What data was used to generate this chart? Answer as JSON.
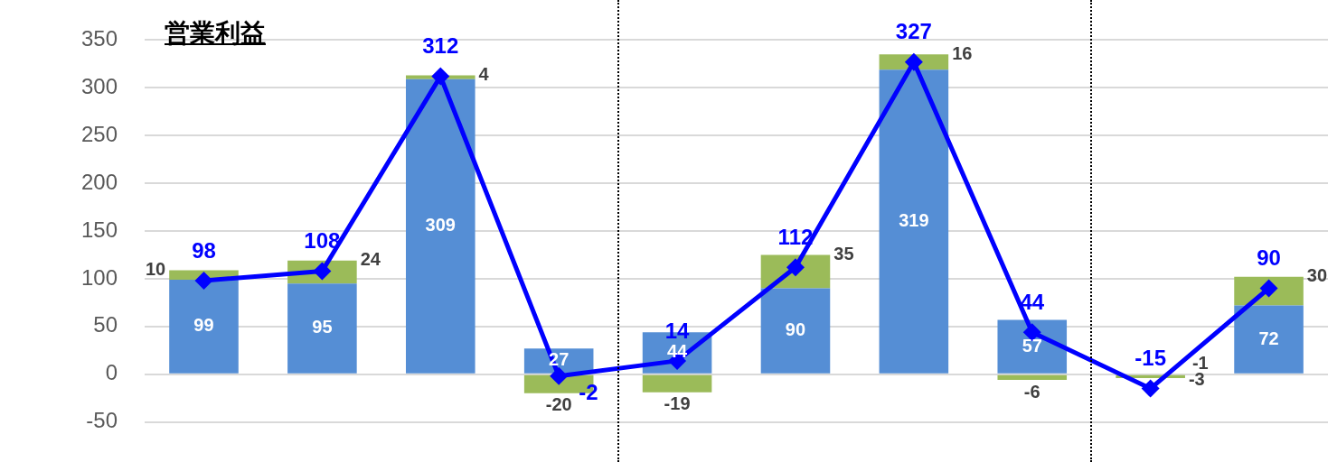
{
  "chart_data": {
    "type": "bar",
    "title": "営業利益",
    "stacked": true,
    "data_labels": true,
    "grid": "y",
    "legend": false,
    "tick_labels": "y",
    "categories": [
      null,
      null,
      null,
      null,
      null,
      null,
      null,
      null,
      null,
      null
    ],
    "ylim": [
      -50,
      350
    ],
    "yticks": [
      -50,
      0,
      50,
      100,
      150,
      200,
      250,
      300,
      350
    ],
    "series": [
      {
        "color": "#558ed5",
        "values": [
          99,
          95,
          309,
          27,
          44,
          90,
          319,
          57,
          -1,
          72
        ]
      },
      {
        "color": "#9bbb59",
        "values": [
          10,
          24,
          4,
          -20,
          -19,
          35,
          16,
          -6,
          -3,
          30
        ]
      },
      {
        "type": "line",
        "color": "#0000ff",
        "marker": "diamond",
        "values": [
          98,
          108,
          312,
          -2,
          14,
          112,
          327,
          44,
          -15,
          90
        ]
      }
    ]
  }
}
